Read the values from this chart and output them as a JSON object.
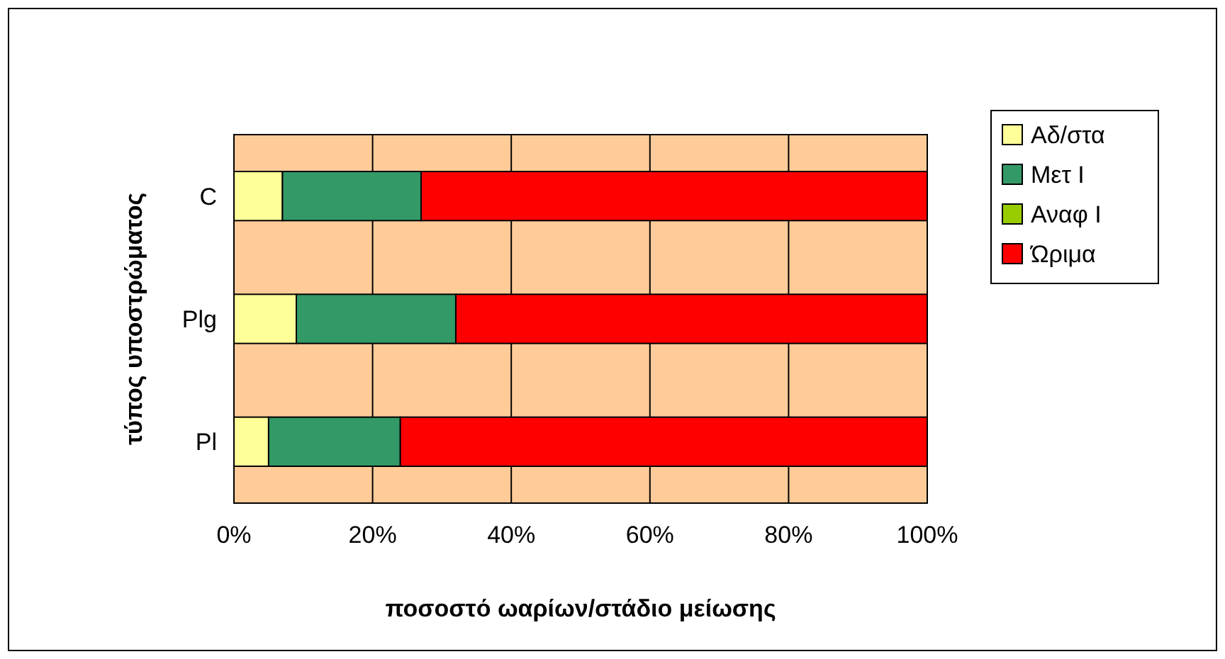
{
  "chart_data": {
    "type": "bar",
    "orientation": "horizontal",
    "stacked": true,
    "categories": [
      "C",
      "Plg",
      "Pl"
    ],
    "series": [
      {
        "name": "Αδ/στα",
        "color": "#ffff99",
        "values": [
          7,
          9,
          5
        ]
      },
      {
        "name": "Μετ Ι",
        "color": "#339966",
        "values": [
          20,
          23,
          19
        ]
      },
      {
        "name": "Αναφ Ι",
        "color": "#99cc00",
        "values": [
          0,
          0,
          0
        ]
      },
      {
        "name": "Ώριμα",
        "color": "#ff0000",
        "values": [
          73,
          68,
          76
        ]
      }
    ],
    "xlim": [
      0,
      100
    ],
    "xticks": [
      {
        "value": 0,
        "label": "0%"
      },
      {
        "value": 20,
        "label": "20%"
      },
      {
        "value": 40,
        "label": "40%"
      },
      {
        "value": 60,
        "label": "60%"
      },
      {
        "value": 80,
        "label": "80%"
      },
      {
        "value": 100,
        "label": "100%"
      }
    ],
    "xlabel": "ποσοστό ωαρίων/στάδιο μείωσης",
    "ylabel": "τύπος υποστρώματος",
    "grid": "x",
    "legend": "right"
  }
}
